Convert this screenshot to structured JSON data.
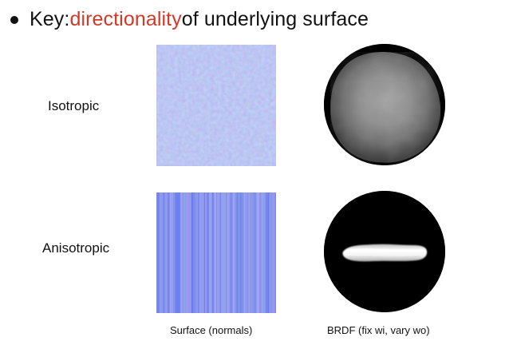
{
  "bullet": {
    "prefix": "Key: ",
    "emphasis": "directionality",
    "suffix": " of underlying surface"
  },
  "rows": {
    "isotropic": "Isotropic",
    "anisotropic": "Anisotropic"
  },
  "captions": {
    "surface": "Surface (normals)",
    "brdf": "BRDF (fix wi, vary wo)"
  },
  "colors": {
    "accent": "#d03a28",
    "normal_map_base": "#7f8eea"
  }
}
